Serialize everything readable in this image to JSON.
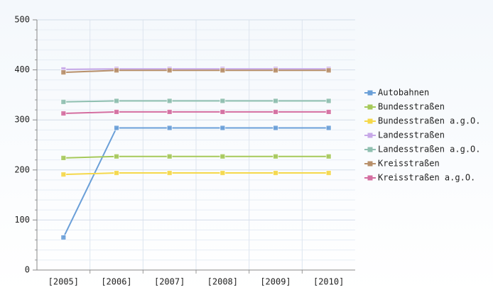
{
  "chart_data": {
    "type": "line",
    "categories": [
      "[2005]",
      "[2006]",
      "[2007]",
      "[2008]",
      "[2009]",
      "[2010]"
    ],
    "series": [
      {
        "name": "Autobahnen",
        "color": "#6a9fd8",
        "values": [
          65,
          284,
          284,
          284,
          284,
          284
        ]
      },
      {
        "name": "Bundesstraßen",
        "color": "#a6c95a",
        "values": [
          224,
          227,
          227,
          227,
          227,
          227
        ]
      },
      {
        "name": "Bundesstraßen a.g.O.",
        "color": "#f5d84a",
        "values": [
          191,
          194,
          194,
          194,
          194,
          194
        ]
      },
      {
        "name": "Landesstraßen",
        "color": "#c7a8e8",
        "values": [
          401,
          402,
          402,
          402,
          402,
          402
        ]
      },
      {
        "name": "Landesstraßen a.g.O.",
        "color": "#8fbfb0",
        "values": [
          336,
          338,
          338,
          338,
          338,
          338
        ]
      },
      {
        "name": "Kreisstraßen",
        "color": "#b8906a",
        "values": [
          395,
          399,
          399,
          399,
          399,
          399
        ]
      },
      {
        "name": "Kreisstraßen a.g.O.",
        "color": "#d46ea0",
        "values": [
          313,
          316,
          316,
          316,
          316,
          316
        ]
      }
    ],
    "ylim": [
      0,
      500
    ],
    "yticks": [
      0,
      100,
      200,
      300,
      400,
      500
    ],
    "grid": true,
    "legend": "right"
  }
}
